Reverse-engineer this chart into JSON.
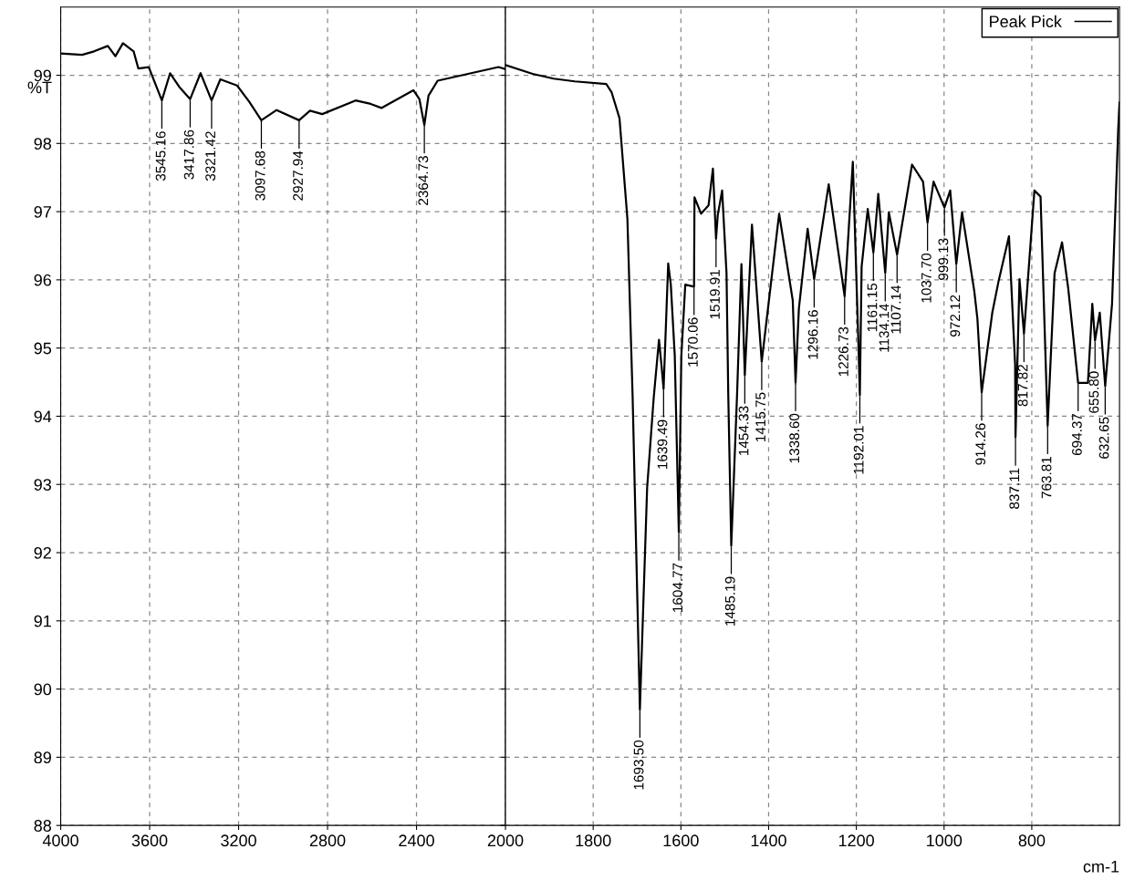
{
  "chart_data": [
    {
      "type": "line",
      "ylabel": "%T",
      "x": [
        4000,
        3904,
        3850,
        3788,
        3754,
        3720,
        3672,
        3651,
        3604,
        3545.16,
        3508,
        3467,
        3417.86,
        3371,
        3321.42,
        3282,
        3207,
        3152,
        3097.68,
        3029,
        2927.94,
        2879,
        2824,
        2674,
        2606,
        2558,
        2414,
        2387,
        2364.73,
        2346,
        2305,
        2182,
        2031,
        2000
      ],
      "series": [
        {
          "color": "#000000",
          "values": [
            99.32,
            99.3,
            99.35,
            99.43,
            99.28,
            99.47,
            99.35,
            99.1,
            99.12,
            98.63,
            99.03,
            98.83,
            98.65,
            99.03,
            98.63,
            98.94,
            98.85,
            98.61,
            98.34,
            98.49,
            98.34,
            98.48,
            98.43,
            98.63,
            98.58,
            98.52,
            98.78,
            98.65,
            98.27,
            98.7,
            98.92,
            99.01,
            99.12,
            99.09
          ]
        }
      ],
      "xlim": [
        4000,
        2000
      ],
      "ylim": [
        88,
        100
      ],
      "xticks": [
        4000,
        3600,
        3200,
        2800,
        2400,
        2000
      ],
      "yticks": [
        88,
        89,
        90,
        91,
        92,
        93,
        94,
        95,
        96,
        97,
        98,
        99
      ],
      "grid": true,
      "annotations": [
        {
          "text": "3545.16",
          "x": 3545.16,
          "y": 98.63
        },
        {
          "text": "3417.86",
          "x": 3417.86,
          "y": 98.65
        },
        {
          "text": "3321.42",
          "x": 3321.42,
          "y": 98.63
        },
        {
          "text": "3097.68",
          "x": 3097.68,
          "y": 98.34
        },
        {
          "text": "2927.94",
          "x": 2927.94,
          "y": 98.34
        },
        {
          "text": "2364.73",
          "x": 2364.73,
          "y": 98.27
        }
      ]
    },
    {
      "type": "line",
      "xlabel": "cm-1",
      "tick_labels": "x",
      "legend": "top right",
      "x": [
        2000,
        1938,
        1890,
        1842,
        1770,
        1758,
        1740,
        1722,
        1710,
        1693.5,
        1677,
        1662,
        1650,
        1644,
        1639.49,
        1629,
        1623,
        1614,
        1604.77,
        1599,
        1590,
        1570.06,
        1569,
        1554,
        1537,
        1527,
        1519.91,
        1516,
        1506,
        1496,
        1492,
        1485.19,
        1472,
        1462,
        1454.33,
        1438,
        1415.75,
        1376,
        1345,
        1338.6,
        1331,
        1311,
        1296.16,
        1263,
        1226.73,
        1208,
        1195,
        1192.01,
        1188,
        1174,
        1161.15,
        1150,
        1134.14,
        1126,
        1107.14,
        1073,
        1048,
        1037.7,
        1024,
        999.13,
        986,
        972.12,
        959,
        931,
        924,
        914.26,
        890,
        876,
        852,
        838,
        837.11,
        828,
        817.82,
        794,
        780,
        763.81,
        748,
        731,
        717,
        694.37,
        672,
        662,
        655.8,
        645,
        632.65,
        617,
        603,
        600
      ],
      "series": [
        {
          "name": "Peak Pick",
          "color": "#000000",
          "values": [
            99.15,
            99.02,
            98.95,
            98.91,
            98.87,
            98.75,
            98.37,
            96.9,
            94.27,
            89.7,
            92.95,
            94.27,
            95.12,
            94.73,
            94.4,
            96.24,
            95.93,
            94.89,
            92.3,
            94.89,
            95.93,
            95.9,
            97.21,
            96.97,
            97.09,
            97.63,
            96.6,
            96.95,
            97.31,
            96.1,
            94.31,
            92.1,
            94.31,
            96.23,
            94.6,
            96.81,
            94.8,
            96.97,
            95.7,
            94.49,
            95.58,
            96.75,
            96.01,
            97.4,
            95.76,
            97.73,
            95.0,
            94.31,
            96.19,
            97.04,
            96.4,
            97.26,
            96.1,
            96.99,
            96.37,
            97.69,
            97.44,
            96.84,
            97.44,
            97.06,
            97.31,
            96.23,
            96.99,
            95.83,
            95.43,
            94.35,
            95.52,
            95.97,
            96.64,
            94.76,
            93.69,
            96.01,
            95.21,
            97.31,
            97.22,
            93.86,
            96.1,
            96.55,
            95.88,
            94.49,
            94.49,
            95.65,
            95.11,
            95.52,
            94.44,
            95.65,
            98.2,
            98.6
          ]
        }
      ],
      "xlim": [
        2000,
        600
      ],
      "ylim": [
        88,
        100
      ],
      "xticks": [
        1800,
        1600,
        1400,
        1200,
        1000,
        800
      ],
      "yticks": [
        88,
        89,
        90,
        91,
        92,
        93,
        94,
        95,
        96,
        97,
        98,
        99
      ],
      "grid": true,
      "annotations": [
        {
          "text": "1693.50",
          "x": 1693.5,
          "y": 89.7
        },
        {
          "text": "1639.49",
          "x": 1639.49,
          "y": 94.4
        },
        {
          "text": "1604.77",
          "x": 1604.77,
          "y": 92.3
        },
        {
          "text": "1570.06",
          "x": 1570.06,
          "y": 95.9
        },
        {
          "text": "1519.91",
          "x": 1519.91,
          "y": 96.6
        },
        {
          "text": "1485.19",
          "x": 1485.19,
          "y": 92.1
        },
        {
          "text": "1454.33",
          "x": 1454.33,
          "y": 94.6
        },
        {
          "text": "1415.75",
          "x": 1415.75,
          "y": 94.8
        },
        {
          "text": "1338.60",
          "x": 1338.6,
          "y": 94.49
        },
        {
          "text": "1296.16",
          "x": 1296.16,
          "y": 96.01
        },
        {
          "text": "1226.73",
          "x": 1226.73,
          "y": 95.76
        },
        {
          "text": "1192.01",
          "x": 1192.01,
          "y": 94.31
        },
        {
          "text": "1161.15",
          "x": 1161.15,
          "y": 96.4
        },
        {
          "text": "1134.14",
          "x": 1134.14,
          "y": 96.1
        },
        {
          "text": "1107.14",
          "x": 1107.14,
          "y": 96.37
        },
        {
          "text": "1037.70",
          "x": 1037.7,
          "y": 96.84
        },
        {
          "text": "999.13",
          "x": 999.13,
          "y": 97.06
        },
        {
          "text": "972.12",
          "x": 972.12,
          "y": 96.23
        },
        {
          "text": "914.26",
          "x": 914.26,
          "y": 94.35
        },
        {
          "text": "837.11",
          "x": 837.11,
          "y": 93.69
        },
        {
          "text": "817.82",
          "x": 817.82,
          "y": 95.21
        },
        {
          "text": "763.81",
          "x": 763.81,
          "y": 93.86
        },
        {
          "text": "694.37",
          "x": 694.37,
          "y": 94.49
        },
        {
          "text": "655.80",
          "x": 655.8,
          "y": 95.11
        },
        {
          "text": "632.65",
          "x": 632.65,
          "y": 94.44
        }
      ]
    }
  ]
}
